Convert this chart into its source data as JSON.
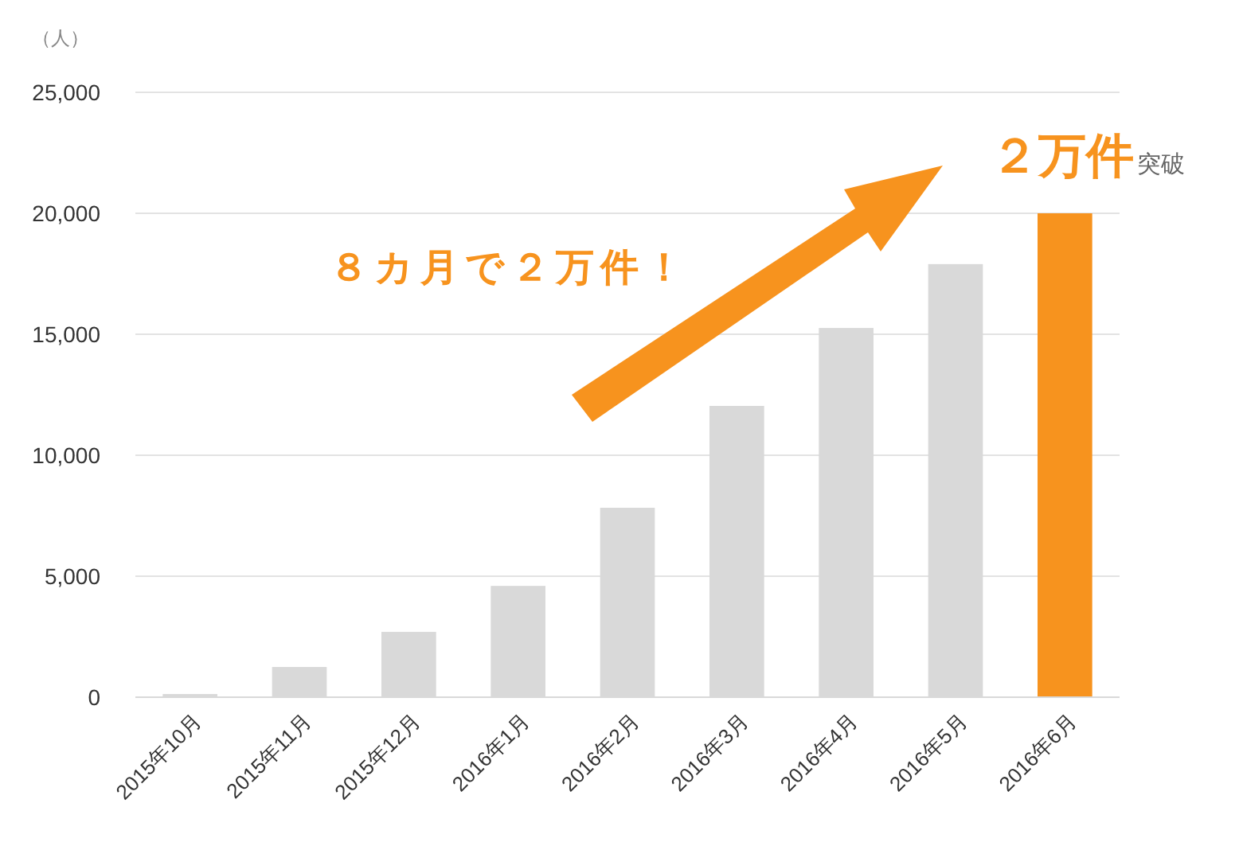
{
  "chart_data": {
    "type": "bar",
    "ylabel": "（人）",
    "categories": [
      "2015年10月",
      "2015年11月",
      "2015年12月",
      "2016年1月",
      "2016年2月",
      "2016年3月",
      "2016年4月",
      "2016年5月",
      "2016年6月"
    ],
    "values": [
      130,
      1250,
      2700,
      4600,
      7830,
      12040,
      15260,
      17900,
      20000
    ],
    "colors": [
      "#d9d9d9",
      "#d9d9d9",
      "#d9d9d9",
      "#d9d9d9",
      "#d9d9d9",
      "#d9d9d9",
      "#d9d9d9",
      "#d9d9d9",
      "#f7931e"
    ],
    "ylim": [
      0,
      25000
    ],
    "yticks": [
      {
        "value": 0,
        "label": "0"
      },
      {
        "value": 5000,
        "label": "5,000"
      },
      {
        "value": 10000,
        "label": "10,000"
      },
      {
        "value": 15000,
        "label": "15,000"
      },
      {
        "value": 20000,
        "label": "20,000"
      },
      {
        "value": 25000,
        "label": "25,000"
      }
    ],
    "grid": "y",
    "annotations": [
      "８カ月で２万件！",
      "２万件",
      "突破"
    ]
  }
}
